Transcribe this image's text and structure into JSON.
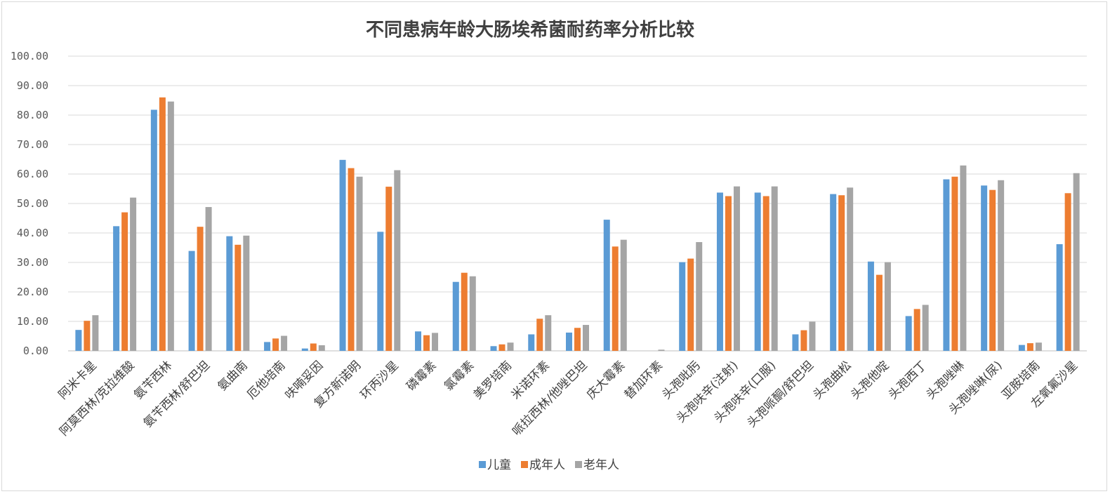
{
  "chart_data": {
    "type": "bar",
    "title": "不同患病年龄大肠埃希菌耐药率分析比较",
    "ylim": [
      0,
      100
    ],
    "yticks": [
      "0.00",
      "10.00",
      "20.00",
      "30.00",
      "40.00",
      "50.00",
      "60.00",
      "70.00",
      "80.00",
      "90.00",
      "100.00"
    ],
    "grid": true,
    "legend_position": "bottom",
    "categories": [
      "阿米卡星",
      "阿莫西林/克拉维酸",
      "氨苄西林",
      "氨苄西林/舒巴坦",
      "氨曲南",
      "厄他培南",
      "呋喃妥因",
      "复方新诺明",
      "环丙沙星",
      "磷霉素",
      "氯霉素",
      "美罗培南",
      "米诺环素",
      "哌拉西林/他唑巴坦",
      "庆大霉素",
      "替加环素",
      "头孢吡肟",
      "头孢呋辛(注射)",
      "头孢呋辛(口服)",
      "头孢哌酮/舒巴坦",
      "头孢曲松",
      "头孢他啶",
      "头孢西丁",
      "头孢唑啉",
      "头孢唑啉(尿)",
      "亚胺培南",
      "左氧氟沙星"
    ],
    "series": [
      {
        "name": "儿童",
        "color": "#5b9bd5",
        "values": [
          7.1,
          42.3,
          81.8,
          33.9,
          38.9,
          3.0,
          0.8,
          64.8,
          40.4,
          6.6,
          23.4,
          1.6,
          5.6,
          6.2,
          44.5,
          0.0,
          30.1,
          53.7,
          53.7,
          5.6,
          53.2,
          30.3,
          11.8,
          58.2,
          56.1,
          2.0,
          36.2
        ]
      },
      {
        "name": "成年人",
        "color": "#ed7d31",
        "values": [
          10.2,
          47.0,
          86.0,
          42.1,
          36.0,
          4.2,
          2.5,
          62.0,
          55.7,
          5.3,
          26.5,
          2.2,
          10.9,
          7.8,
          35.4,
          0.0,
          31.3,
          52.5,
          52.5,
          7.0,
          52.8,
          25.8,
          14.2,
          59.1,
          54.6,
          2.6,
          53.5
        ]
      },
      {
        "name": "老年人",
        "color": "#a5a5a5",
        "values": [
          12.1,
          52.0,
          84.6,
          48.8,
          39.1,
          5.1,
          1.9,
          59.1,
          61.3,
          6.1,
          25.3,
          2.8,
          12.1,
          8.8,
          37.7,
          0.4,
          36.9,
          55.8,
          55.8,
          9.9,
          55.4,
          30.1,
          15.6,
          62.9,
          57.9,
          2.8,
          60.3
        ]
      }
    ]
  }
}
